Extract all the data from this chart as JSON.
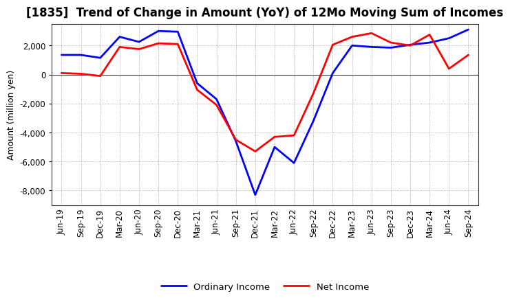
{
  "title": "[1835]  Trend of Change in Amount (YoY) of 12Mo Moving Sum of Incomes",
  "ylabel": "Amount (million yen)",
  "x_labels": [
    "Jun-19",
    "Sep-19",
    "Dec-19",
    "Mar-20",
    "Jun-20",
    "Sep-20",
    "Dec-20",
    "Mar-21",
    "Jun-21",
    "Sep-21",
    "Dec-21",
    "Mar-22",
    "Jun-22",
    "Sep-22",
    "Dec-22",
    "Mar-23",
    "Jun-23",
    "Sep-23",
    "Dec-23",
    "Mar-24",
    "Jun-24",
    "Sep-24"
  ],
  "ordinary_income": [
    1350,
    1350,
    1150,
    2600,
    2250,
    3000,
    2950,
    -600,
    -1700,
    -4600,
    -8300,
    -5000,
    -6100,
    -3200,
    100,
    2000,
    1900,
    1850,
    2050,
    2200,
    2500,
    3100
  ],
  "net_income": [
    100,
    50,
    -100,
    1900,
    1750,
    2150,
    2100,
    -1050,
    -2100,
    -4500,
    -5300,
    -4300,
    -4200,
    -1300,
    2050,
    2600,
    2850,
    2200,
    2000,
    2750,
    400,
    1350
  ],
  "ordinary_color": "#0000FF",
  "net_color": "#FF0000",
  "background_color": "#FFFFFF",
  "grid_color": "#999999",
  "ylim": [
    -9000,
    3500
  ],
  "yticks": [
    -8000,
    -6000,
    -4000,
    -2000,
    0,
    2000
  ],
  "legend_ordinary": "Ordinary Income",
  "legend_net": "Net Income",
  "linewidth": 2.0,
  "title_fontsize": 12,
  "axis_fontsize": 9,
  "tick_fontsize": 8.5
}
